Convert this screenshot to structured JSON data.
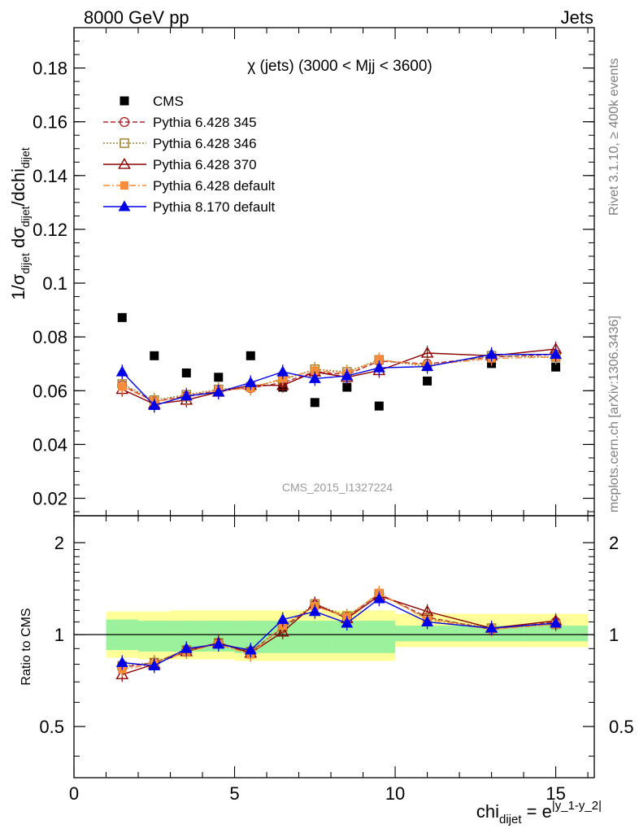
{
  "header": {
    "left": "8000 GeV pp",
    "right": "Jets"
  },
  "side": {
    "rivet": "Rivet 3.1.10, ≥ 400k events",
    "mcplots": "mcplots.cern.ch [arXiv:1306.3436]"
  },
  "chart_data": [
    {
      "type": "line",
      "title": "χ (jets) (3000 < Mjj < 3600)",
      "watermark": "CMS_2015_I1327224",
      "ylabel_parts": {
        "a": "1/σ",
        "a_sub": "dijet",
        "b": " dσ",
        "b_sub": "dijet",
        "c": "/dchi",
        "c_sub": "dijet"
      },
      "xlim": [
        0,
        16.2
      ],
      "ylim": [
        0.0135,
        0.195
      ],
      "yticks": [
        0.02,
        0.04,
        0.06,
        0.08,
        0.1,
        0.12,
        0.14,
        0.16,
        0.18
      ],
      "ytick_labels": [
        "0.02",
        "0.04",
        "0.06",
        "0.08",
        "0.1",
        "0.12",
        "0.14",
        "0.16",
        "0.18"
      ],
      "legend_position": "top-left",
      "x": [
        1.5,
        2.5,
        3.5,
        4.5,
        5.5,
        6.5,
        7.5,
        8.5,
        9.5,
        11,
        13,
        15
      ],
      "series": [
        {
          "name": "CMS",
          "color": "#000000",
          "marker": "square",
          "line": "none",
          "values": [
            0.0872,
            0.073,
            0.0666,
            0.065,
            0.073,
            0.0613,
            0.0556,
            0.0613,
            0.0543,
            0.0636,
            0.0701,
            0.0688
          ]
        },
        {
          "name": "Pythia 6.428 345",
          "color": "#b1282c",
          "marker": "open-circle",
          "line": "dashed",
          "values": [
            0.062,
            0.056,
            0.058,
            0.06,
            0.061,
            0.063,
            0.067,
            0.066,
            0.071,
            0.07,
            0.0725,
            0.0735
          ]
        },
        {
          "name": "Pythia 6.428 346",
          "color": "#9e7a28",
          "marker": "open-square",
          "line": "dotted",
          "values": [
            0.0625,
            0.0565,
            0.0585,
            0.0605,
            0.0615,
            0.064,
            0.068,
            0.067,
            0.0715,
            0.069,
            0.073,
            0.0725
          ]
        },
        {
          "name": "Pythia 6.428 370",
          "color": "#8b0000",
          "marker": "open-triangle",
          "line": "solid",
          "values": [
            0.0605,
            0.055,
            0.0565,
            0.0595,
            0.062,
            0.062,
            0.067,
            0.065,
            0.0675,
            0.074,
            0.073,
            0.0755
          ]
        },
        {
          "name": "Pythia 6.428 default",
          "color": "#f98c3a",
          "marker": "filled-square",
          "line": "dashdot",
          "values": [
            0.0615,
            0.056,
            0.0575,
            0.06,
            0.061,
            0.0645,
            0.0675,
            0.0665,
            0.0715,
            0.0695,
            0.072,
            0.0725
          ]
        },
        {
          "name": "Pythia 8.170 default",
          "color": "#0000e6",
          "marker": "filled-triangle",
          "line": "solid",
          "values": [
            0.067,
            0.0545,
            0.058,
            0.0595,
            0.063,
            0.067,
            0.0645,
            0.0655,
            0.0685,
            0.069,
            0.0735,
            0.0735
          ]
        }
      ]
    },
    {
      "type": "line",
      "ylabel": "Ratio to CMS",
      "xlabel_parts": {
        "a": "chi",
        "a_sub": "dijet",
        "b": " = e",
        "b_sup": "|y_1-y_2|"
      },
      "xlim": [
        0,
        16.2
      ],
      "ylim": [
        0.34,
        2.45
      ],
      "yscale": "log",
      "yticks": [
        0.5,
        1,
        2
      ],
      "ytick_labels": [
        "0.5",
        "1",
        "2"
      ],
      "xticks": [
        0,
        5,
        10,
        15
      ],
      "xtick_labels": [
        "0",
        "5",
        "10",
        "15"
      ],
      "bands": {
        "x_edges": [
          1,
          2,
          3,
          4,
          5,
          6,
          7,
          8,
          9,
          10,
          12,
          14,
          16
        ],
        "inner": [
          [
            0.89,
            1.12
          ],
          [
            0.88,
            1.11
          ],
          [
            0.88,
            1.11
          ],
          [
            0.88,
            1.11
          ],
          [
            0.87,
            1.11
          ],
          [
            0.87,
            1.11
          ],
          [
            0.87,
            1.11
          ],
          [
            0.87,
            1.11
          ],
          [
            0.87,
            1.11
          ],
          [
            0.95,
            1.07
          ],
          [
            0.95,
            1.07
          ],
          [
            0.95,
            1.07
          ]
        ],
        "outer": [
          [
            0.84,
            1.19
          ],
          [
            0.83,
            1.19
          ],
          [
            0.83,
            1.2
          ],
          [
            0.83,
            1.2
          ],
          [
            0.82,
            1.2
          ],
          [
            0.82,
            1.2
          ],
          [
            0.82,
            1.2
          ],
          [
            0.82,
            1.2
          ],
          [
            0.82,
            1.2
          ],
          [
            0.91,
            1.17
          ],
          [
            0.91,
            1.17
          ],
          [
            0.91,
            1.17
          ]
        ],
        "inner_color": "#9cf29c",
        "outer_color": "#ffff99"
      },
      "series": [
        {
          "name": "Pythia 6.428 345",
          "color": "#b1282c",
          "marker": "open-circle",
          "line": "dashed",
          "values": [
            0.78,
            0.81,
            0.89,
            0.94,
            0.88,
            1.05,
            1.25,
            1.14,
            1.36,
            1.14,
            1.04,
            1.1
          ]
        },
        {
          "name": "Pythia 6.428 346",
          "color": "#9e7a28",
          "marker": "open-square",
          "line": "dotted",
          "values": [
            0.79,
            0.81,
            0.89,
            0.94,
            0.88,
            1.06,
            1.26,
            1.15,
            1.36,
            1.13,
            1.05,
            1.08
          ]
        },
        {
          "name": "Pythia 6.428 370",
          "color": "#8b0000",
          "marker": "open-triangle",
          "line": "solid",
          "values": [
            0.74,
            0.8,
            0.88,
            0.94,
            0.87,
            1.02,
            1.26,
            1.13,
            1.34,
            1.19,
            1.05,
            1.11
          ]
        },
        {
          "name": "Pythia 6.428 default",
          "color": "#f98c3a",
          "marker": "filled-square",
          "line": "dashdot",
          "values": [
            0.77,
            0.8,
            0.88,
            0.93,
            0.86,
            1.07,
            1.24,
            1.14,
            1.37,
            1.12,
            1.04,
            1.08
          ]
        },
        {
          "name": "Pythia 8.170 default",
          "color": "#0000e6",
          "marker": "filled-triangle",
          "line": "solid",
          "values": [
            0.81,
            0.79,
            0.9,
            0.93,
            0.89,
            1.12,
            1.19,
            1.09,
            1.31,
            1.1,
            1.05,
            1.09
          ]
        }
      ]
    }
  ]
}
